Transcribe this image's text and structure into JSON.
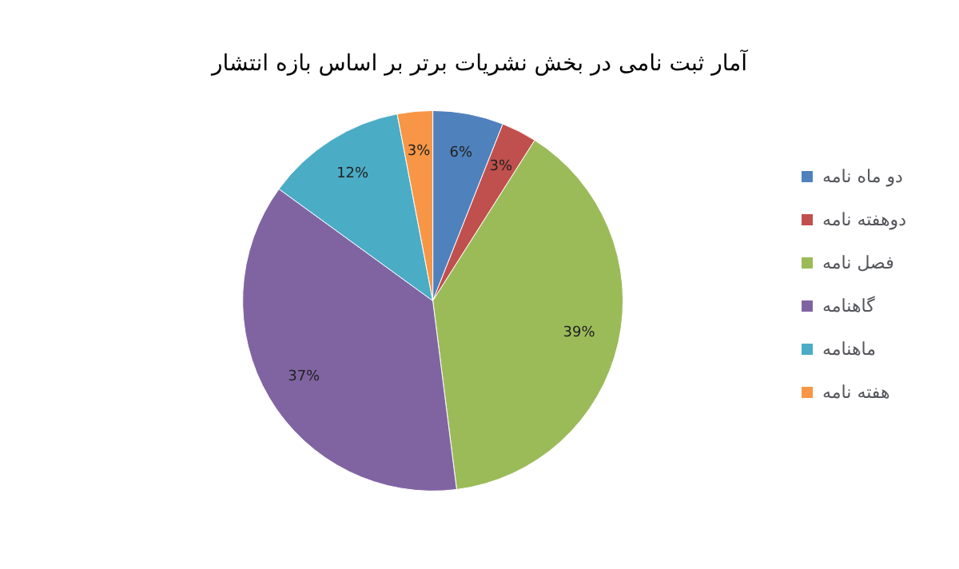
{
  "chart_data": {
    "type": "pie",
    "title": "آمار ثبت نامی در بخش نشریات برتر بر اساس بازه انتشار",
    "categories": [
      "دو ماه نامه",
      "دوهفته نامه",
      "فصل نامه",
      "گاهنامه",
      "ماهنامه",
      "هفته نامه"
    ],
    "values": [
      6,
      3,
      39,
      37,
      12,
      3
    ],
    "colors": [
      "#4f81bd",
      "#c0504d",
      "#9bbb59",
      "#8064a2",
      "#4bacc6",
      "#f79646"
    ],
    "value_labels": [
      "6%",
      "3%",
      "39%",
      "37%",
      "12%",
      "3%"
    ],
    "legend": "right"
  }
}
